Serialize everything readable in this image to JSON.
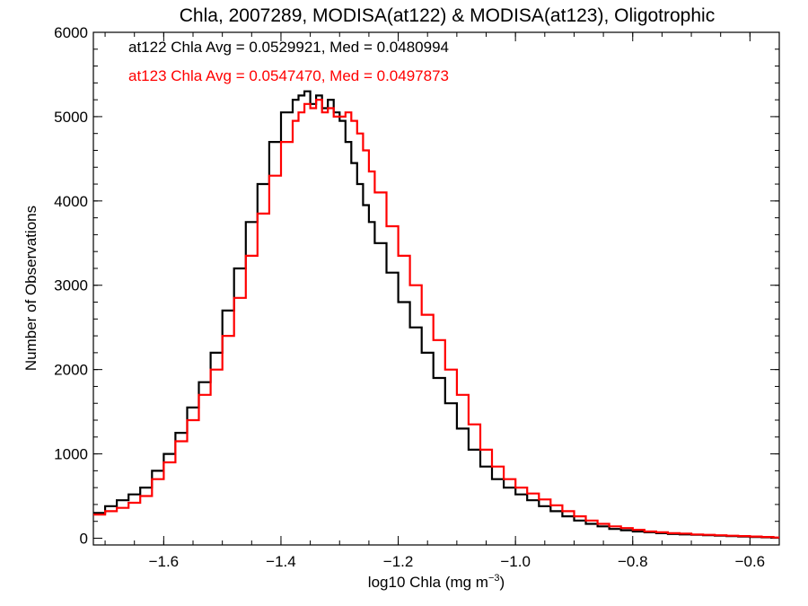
{
  "chart_data": {
    "type": "line",
    "title": "Chla, 2007289, MODISA(at122) & MODISA(at123), Oligotrophic",
    "xlabel_main": "log10 Chla (mg m",
    "xlabel_sup": "−3",
    "xlabel_close": ")",
    "ylabel": "Number of Observations",
    "xlim": [
      -1.72,
      -0.55
    ],
    "ylim": [
      -80,
      6000
    ],
    "x_ticks": [
      -1.6,
      -1.4,
      -1.2,
      -1.0,
      -0.8,
      -0.6
    ],
    "x_tick_labels": [
      "−1.6",
      "−1.4",
      "−1.2",
      "−1.0",
      "−0.8",
      "−0.6"
    ],
    "y_ticks": [
      0,
      1000,
      2000,
      3000,
      4000,
      5000,
      6000
    ],
    "y_tick_labels": [
      "0",
      "1000",
      "2000",
      "3000",
      "4000",
      "5000",
      "6000"
    ],
    "grid": false,
    "legend_position": "top-left",
    "annotations": [
      {
        "text": "at122 Chla Avg = 0.0529921, Med = 0.0480994",
        "color": "#000000"
      },
      {
        "text": "at123 Chla Avg = 0.0547470, Med = 0.0497873",
        "color": "#ff0000"
      }
    ],
    "series": [
      {
        "color": "#000000",
        "x": [
          -1.72,
          -1.7,
          -1.68,
          -1.66,
          -1.64,
          -1.62,
          -1.6,
          -1.58,
          -1.56,
          -1.54,
          -1.52,
          -1.5,
          -1.48,
          -1.46,
          -1.44,
          -1.42,
          -1.4,
          -1.38,
          -1.37,
          -1.36,
          -1.35,
          -1.34,
          -1.33,
          -1.32,
          -1.31,
          -1.3,
          -1.29,
          -1.28,
          -1.27,
          -1.26,
          -1.25,
          -1.24,
          -1.22,
          -1.2,
          -1.18,
          -1.16,
          -1.14,
          -1.12,
          -1.1,
          -1.08,
          -1.06,
          -1.04,
          -1.02,
          -1.0,
          -0.98,
          -0.96,
          -0.94,
          -0.92,
          -0.9,
          -0.88,
          -0.86,
          -0.84,
          -0.82,
          -0.8,
          -0.78,
          -0.76,
          -0.74,
          -0.72,
          -0.7,
          -0.68,
          -0.66,
          -0.64,
          -0.62,
          -0.6,
          -0.58,
          -0.56
        ],
        "values": [
          300,
          380,
          450,
          520,
          600,
          800,
          1000,
          1250,
          1550,
          1850,
          2200,
          2700,
          3200,
          3750,
          4200,
          4700,
          5050,
          5200,
          5250,
          5300,
          5150,
          5250,
          5100,
          5200,
          5050,
          4950,
          4700,
          4450,
          4200,
          3950,
          3750,
          3500,
          3150,
          2800,
          2500,
          2200,
          1900,
          1600,
          1300,
          1050,
          850,
          700,
          600,
          520,
          450,
          380,
          320,
          260,
          210,
          170,
          140,
          110,
          95,
          80,
          70,
          60,
          50,
          45,
          40,
          35,
          30,
          25,
          20,
          15,
          10,
          5
        ]
      },
      {
        "color": "#ff0000",
        "x": [
          -1.72,
          -1.7,
          -1.68,
          -1.66,
          -1.64,
          -1.62,
          -1.6,
          -1.58,
          -1.56,
          -1.54,
          -1.52,
          -1.5,
          -1.48,
          -1.46,
          -1.44,
          -1.42,
          -1.4,
          -1.38,
          -1.37,
          -1.36,
          -1.35,
          -1.34,
          -1.33,
          -1.32,
          -1.31,
          -1.3,
          -1.29,
          -1.28,
          -1.27,
          -1.26,
          -1.25,
          -1.24,
          -1.22,
          -1.2,
          -1.18,
          -1.16,
          -1.14,
          -1.12,
          -1.1,
          -1.08,
          -1.06,
          -1.04,
          -1.02,
          -1.0,
          -0.98,
          -0.96,
          -0.94,
          -0.92,
          -0.9,
          -0.88,
          -0.86,
          -0.84,
          -0.82,
          -0.8,
          -0.78,
          -0.76,
          -0.74,
          -0.72,
          -0.7,
          -0.68,
          -0.66,
          -0.64,
          -0.62,
          -0.6,
          -0.58,
          -0.56
        ],
        "values": [
          280,
          320,
          360,
          420,
          500,
          700,
          900,
          1150,
          1400,
          1700,
          2000,
          2400,
          2850,
          3350,
          3850,
          4300,
          4700,
          4950,
          5050,
          5150,
          5100,
          5200,
          5050,
          5100,
          5000,
          5000,
          5050,
          4950,
          4800,
          4600,
          4350,
          4100,
          3700,
          3350,
          3000,
          2650,
          2350,
          2000,
          1700,
          1350,
          1050,
          850,
          700,
          600,
          530,
          460,
          390,
          320,
          260,
          210,
          170,
          140,
          120,
          100,
          80,
          70,
          60,
          55,
          45,
          40,
          35,
          30,
          25,
          20,
          15,
          8
        ]
      }
    ]
  }
}
